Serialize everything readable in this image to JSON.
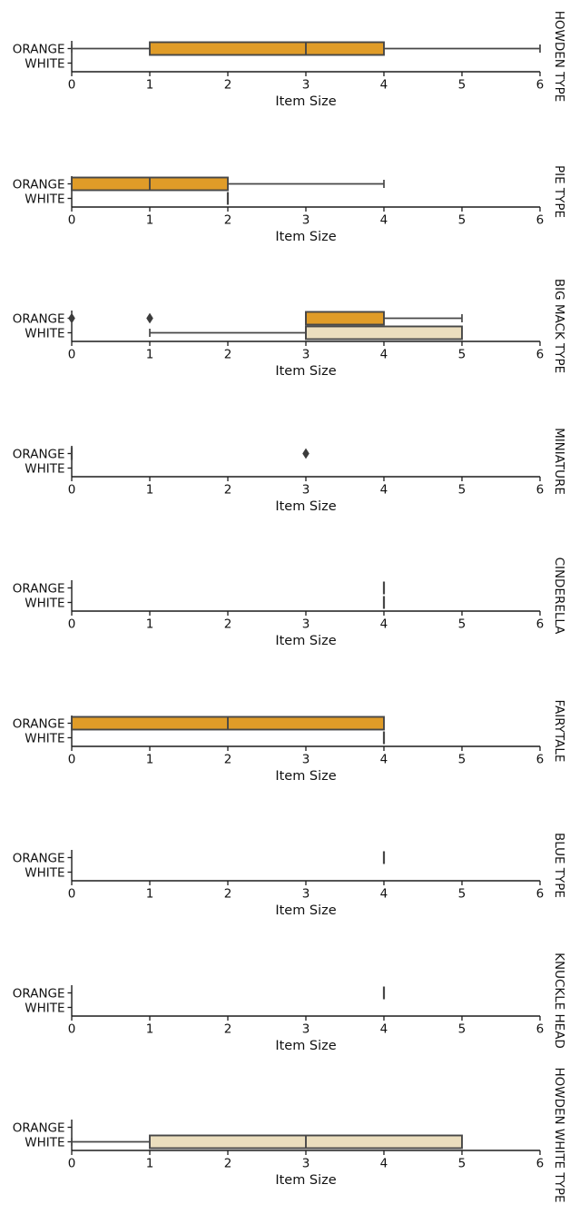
{
  "figure": {
    "background": "#ffffff"
  },
  "chart_data": {
    "type": "boxplot-grid",
    "orientation": "horizontal",
    "xlabel": "Item Size",
    "xlim": [
      0,
      6
    ],
    "xticks": [
      "0",
      "1",
      "2",
      "3",
      "4",
      "5",
      "6"
    ],
    "categories": [
      "ORANGE",
      "WHITE"
    ],
    "grid": false,
    "legend": "none",
    "facet_title_position": "right-rotated",
    "colors": {
      "orange_box_fill": "#e09c28",
      "white_box_fill": "#ebdebe",
      "box_edge": "#474747",
      "whisker": "#474747",
      "flier": "#3c3c3c",
      "axis": "#1c1c1c",
      "text": "#111111"
    },
    "facets": [
      {
        "title": "HOWDEN TYPE",
        "boxes": {
          "ORANGE": {
            "whislo": 0,
            "q1": 1,
            "med": 3,
            "q3": 4,
            "whishi": 6,
            "fliers": []
          },
          "WHITE": null
        }
      },
      {
        "title": "PIE TYPE",
        "boxes": {
          "ORANGE": {
            "whislo": 0,
            "q1": 0,
            "med": 1,
            "q3": 2,
            "whishi": 4,
            "fliers": []
          },
          "WHITE": {
            "whislo": 2,
            "q1": 2,
            "med": 2,
            "q3": 2,
            "whishi": 2,
            "fliers": []
          }
        }
      },
      {
        "title": "BIG MACK TYPE",
        "boxes": {
          "ORANGE": {
            "whislo": 3,
            "q1": 3,
            "med": 3,
            "q3": 4,
            "whishi": 5,
            "fliers": [
              0,
              1
            ]
          },
          "WHITE": {
            "whislo": 1,
            "q1": 3,
            "med": 3,
            "q3": 5,
            "whishi": 5,
            "fliers": []
          }
        }
      },
      {
        "title": "MINIATURE",
        "boxes": {
          "ORANGE": {
            "whislo": 0,
            "q1": 0,
            "med": 0,
            "q3": 0,
            "whishi": 0,
            "fliers": [
              3
            ]
          },
          "WHITE": null
        }
      },
      {
        "title": "CINDERELLA",
        "boxes": {
          "ORANGE": {
            "whislo": 4,
            "q1": 4,
            "med": 4,
            "q3": 4,
            "whishi": 4,
            "fliers": []
          },
          "WHITE": {
            "whislo": 4,
            "q1": 4,
            "med": 4,
            "q3": 4,
            "whishi": 4,
            "fliers": []
          }
        }
      },
      {
        "title": "FAIRYTALE",
        "boxes": {
          "ORANGE": {
            "whislo": 0,
            "q1": 0,
            "med": 2,
            "q3": 4,
            "whishi": 4,
            "fliers": []
          },
          "WHITE": {
            "whislo": 4,
            "q1": 4,
            "med": 4,
            "q3": 4,
            "whishi": 4,
            "fliers": []
          }
        }
      },
      {
        "title": "BLUE TYPE",
        "boxes": {
          "ORANGE": {
            "whislo": 4,
            "q1": 4,
            "med": 4,
            "q3": 4,
            "whishi": 4,
            "fliers": []
          },
          "WHITE": null
        }
      },
      {
        "title": "KNUCKLE HEAD",
        "boxes": {
          "ORANGE": {
            "whislo": 4,
            "q1": 4,
            "med": 4,
            "q3": 4,
            "whishi": 4,
            "fliers": []
          },
          "WHITE": null
        }
      },
      {
        "title": "HOWDEN WHITE TYPE",
        "boxes": {
          "ORANGE": null,
          "WHITE": {
            "whislo": 0,
            "q1": 1,
            "med": 3,
            "q3": 5,
            "whishi": 5,
            "fliers": []
          }
        }
      }
    ]
  }
}
